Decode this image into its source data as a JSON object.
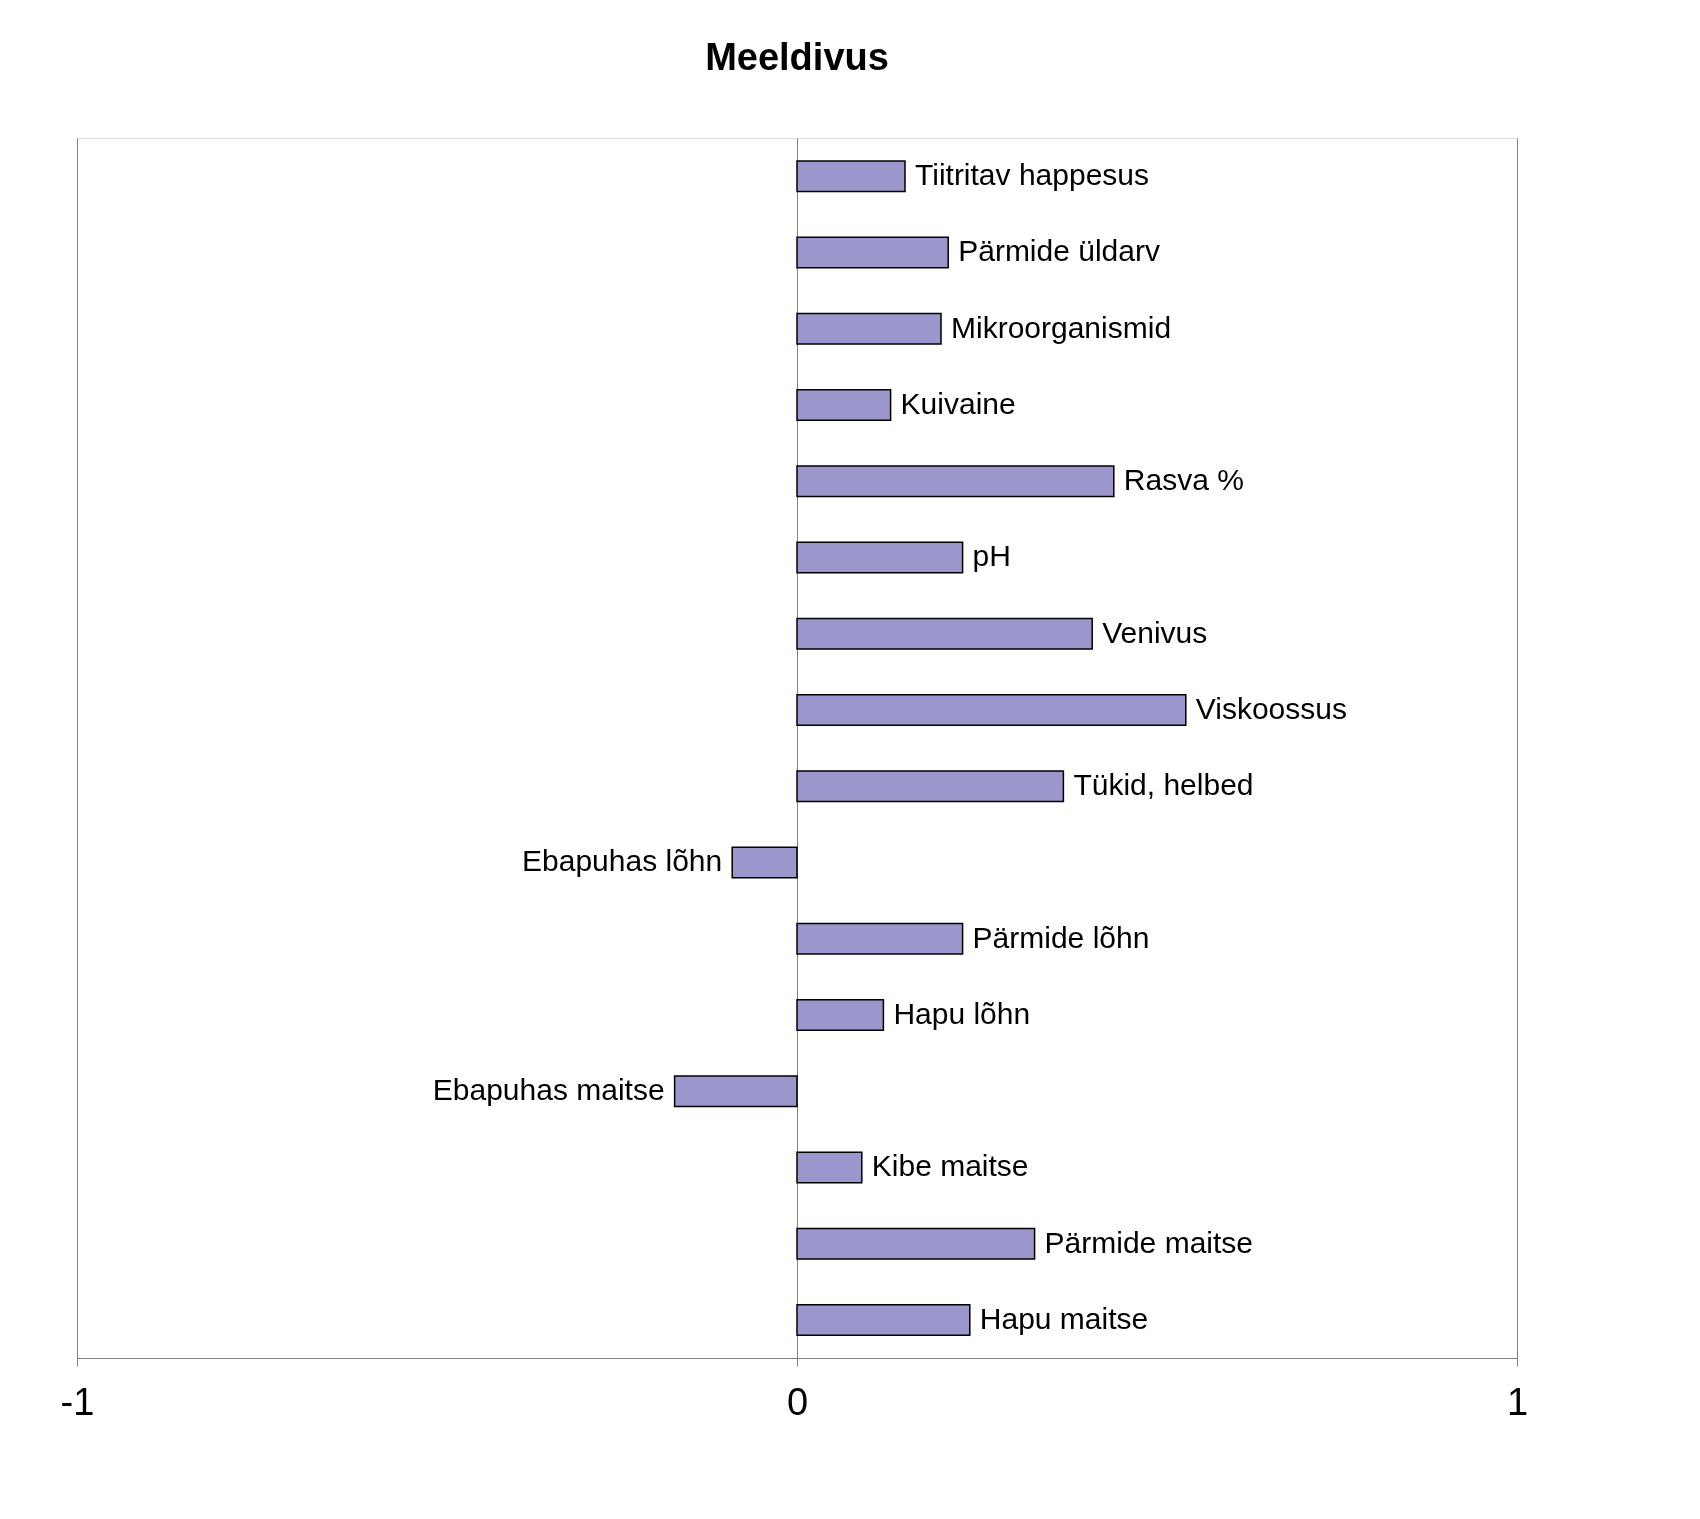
{
  "chart_data": {
    "type": "bar",
    "orientation": "horizontal",
    "title": "Meeldivus",
    "categories": [
      "Tiitritav happesus",
      "Pärmide üldarv",
      "Mikroorganismid",
      "Kuivaine",
      "Rasva %",
      "pH",
      "Venivus",
      "Viskoossus",
      "Tükid, helbed",
      "Ebapuhas lõhn",
      "Pärmide lõhn",
      "Hapu lõhn",
      "Ebapuhas maitse",
      "Kibe maitse",
      "Pärmide maitse",
      "Hapu maitse"
    ],
    "values": [
      0.15,
      0.21,
      0.2,
      0.13,
      0.44,
      0.23,
      0.41,
      0.54,
      0.37,
      -0.09,
      0.23,
      0.12,
      -0.17,
      0.09,
      0.33,
      0.24
    ],
    "color": "#9b97cc",
    "xlim": [
      -1,
      1
    ],
    "xticks": [
      -1,
      0,
      1
    ],
    "grid": "x"
  }
}
